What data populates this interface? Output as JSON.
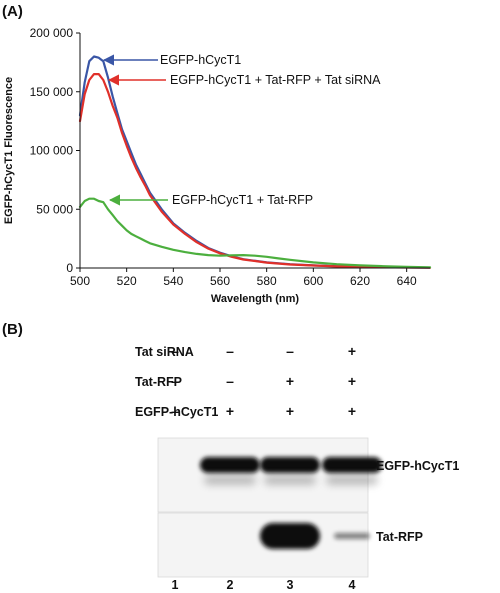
{
  "panel_a_label": "(A)",
  "panel_b_label": "(B)",
  "chart_data": {
    "type": "line",
    "title": "",
    "xlabel": "Wavelength (nm)",
    "ylabel": "EGFP-hCycT1 Fluorescence",
    "xlim": [
      500,
      650
    ],
    "ylim": [
      0,
      200000
    ],
    "x_ticks": [
      500,
      520,
      540,
      560,
      580,
      600,
      620,
      640
    ],
    "x_tick_labels": [
      "500",
      "520",
      "540",
      "560",
      "580",
      "600",
      "620",
      "640"
    ],
    "y_ticks": [
      0,
      50000,
      100000,
      150000,
      200000
    ],
    "y_tick_labels": [
      "0",
      "50 000",
      "100 000",
      "150 000",
      "200 000"
    ],
    "grid": false,
    "legend": "none",
    "series": [
      {
        "name": "EGFP-hCycT1",
        "color": "#3a56a6",
        "x": [
          500,
          502,
          504,
          506,
          508,
          510,
          512,
          514,
          516,
          518,
          520,
          522,
          524,
          526,
          528,
          530,
          535,
          540,
          545,
          550,
          555,
          560,
          565,
          570,
          580,
          590,
          600,
          610,
          620,
          630,
          640,
          650
        ],
        "y": [
          130000,
          158000,
          176000,
          180000,
          179000,
          176000,
          162000,
          146000,
          132000,
          118000,
          108000,
          98000,
          88000,
          80000,
          72000,
          64000,
          50000,
          38000,
          30000,
          23000,
          17000,
          13000,
          10000,
          7500,
          4800,
          3200,
          2200,
          1500,
          1000,
          700,
          500,
          300
        ]
      },
      {
        "name": "EGFP-hCycT1 + Tat-RFP + Tat siRNA",
        "color": "#e0302a",
        "x": [
          500,
          502,
          504,
          506,
          508,
          510,
          512,
          514,
          516,
          518,
          520,
          522,
          524,
          526,
          528,
          530,
          535,
          540,
          545,
          550,
          555,
          560,
          565,
          570,
          580,
          590,
          600,
          610,
          620,
          630,
          640,
          650
        ],
        "y": [
          125000,
          148000,
          160000,
          165000,
          165000,
          160000,
          150000,
          138000,
          128000,
          115000,
          104000,
          94000,
          85000,
          77000,
          70000,
          62000,
          48000,
          37000,
          29000,
          22000,
          16500,
          12500,
          9500,
          7200,
          4600,
          3000,
          2100,
          1400,
          900,
          600,
          400,
          250
        ]
      },
      {
        "name": "EGFP-hCycT1 + Tat-RFP",
        "color": "#4caf3e",
        "x": [
          500,
          502,
          504,
          506,
          508,
          510,
          512,
          514,
          516,
          518,
          520,
          522,
          524,
          526,
          528,
          530,
          535,
          540,
          545,
          550,
          555,
          560,
          565,
          570,
          575,
          580,
          585,
          590,
          600,
          610,
          620,
          630,
          640,
          650
        ],
        "y": [
          52000,
          57000,
          59000,
          59000,
          57000,
          56000,
          50000,
          45000,
          40000,
          36000,
          32000,
          29000,
          27000,
          25000,
          23000,
          21000,
          18000,
          15500,
          13500,
          12000,
          11000,
          10500,
          10800,
          11000,
          10500,
          9500,
          8200,
          7000,
          4800,
          3200,
          2200,
          1500,
          900,
          500
        ]
      }
    ]
  },
  "annotations": [
    {
      "text": "EGFP-hCycT1",
      "series": 0
    },
    {
      "text": "EGFP-hCycT1 + Tat-RFP + Tat siRNA",
      "series": 1
    },
    {
      "text": "EGFP-hCycT1 + Tat-RFP",
      "series": 2
    }
  ],
  "blot": {
    "rows": [
      {
        "label": "Tat siRNA",
        "signs": [
          "–",
          "–",
          "–",
          "+"
        ]
      },
      {
        "label": "Tat-RFP",
        "signs": [
          "–",
          "–",
          "+",
          "+"
        ]
      },
      {
        "label": "EGFP-hCycT1",
        "signs": [
          "–",
          "+",
          "+",
          "+"
        ]
      }
    ],
    "band_labels": [
      "EGFP-hCycT1",
      "Tat-RFP"
    ],
    "band_intensity": [
      [
        0,
        1,
        1,
        0.95
      ],
      [
        0,
        0,
        1,
        0.25
      ]
    ],
    "lane_numbers": [
      "1",
      "2",
      "3",
      "4"
    ]
  }
}
